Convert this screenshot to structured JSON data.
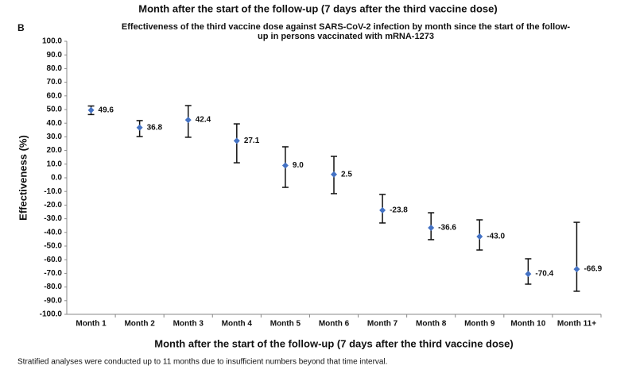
{
  "chart_data": {
    "type": "errorbar",
    "header": "Month after the start of the follow-up (7 days after the third vaccine dose)",
    "panel_label": "B",
    "title": "Effectiveness of the third vaccine dose against SARS-CoV-2 infection by month since the start of the follow-",
    "title_line2": "up in persons vaccinated with mRNA-1273",
    "y_label": "Effectiveness (%)",
    "x_label": "Month after the start of the follow-up (7 days after the third vaccine dose)",
    "footnote": "Stratified analyses were conducted up to 11 months due to insufficient numbers beyond that time interval.",
    "categories": [
      "Month 1",
      "Month 2",
      "Month 3",
      "Month 4",
      "Month 5",
      "Month 6",
      "Month 7",
      "Month 8",
      "Month 9",
      "Month 10",
      "Month 11+"
    ],
    "series": [
      {
        "color": "#4472c4",
        "values": [
          49.6,
          36.8,
          42.4,
          27.1,
          9.0,
          2.5,
          -23.8,
          -36.6,
          -43.0,
          -70.4,
          -66.9
        ],
        "value_labels": [
          "49.6",
          "36.8",
          "42.4",
          "27.1",
          "9.0",
          "2.5",
          "-23.8",
          "-36.6",
          "-43.0",
          "-70.4",
          "-66.9"
        ],
        "lower": [
          46.3,
          30.2,
          29.7,
          11.0,
          -7.0,
          -11.6,
          -33.1,
          -45.3,
          -52.9,
          -77.9,
          -83.1
        ],
        "upper": [
          52.6,
          41.9,
          52.9,
          39.5,
          22.7,
          15.7,
          -12.2,
          -25.6,
          -30.8,
          -59.3,
          -32.6
        ]
      }
    ],
    "ylim": [
      -100,
      100
    ],
    "yticks": [
      {
        "value": -100,
        "label": "-100.0"
      },
      {
        "value": -90,
        "label": "-90.0"
      },
      {
        "value": -80,
        "label": "-80.0"
      },
      {
        "value": -70,
        "label": "-70.0"
      },
      {
        "value": -60,
        "label": "-60.0"
      },
      {
        "value": -50,
        "label": "-50.0"
      },
      {
        "value": -40,
        "label": "-40.0"
      },
      {
        "value": -30,
        "label": "-30.0"
      },
      {
        "value": -20,
        "label": "-20.0"
      },
      {
        "value": -10,
        "label": "-10.0"
      },
      {
        "value": 0,
        "label": "0.0"
      },
      {
        "value": 10,
        "label": "10.0"
      },
      {
        "value": 20,
        "label": "20.0"
      },
      {
        "value": 30,
        "label": "30.0"
      },
      {
        "value": 40,
        "label": "40.0"
      },
      {
        "value": 50,
        "label": "50.0"
      },
      {
        "value": 60,
        "label": "60.0"
      },
      {
        "value": 70,
        "label": "70.0"
      },
      {
        "value": 80,
        "label": "80.0"
      },
      {
        "value": 90,
        "label": "90.0"
      },
      {
        "value": 100,
        "label": "100.0"
      }
    ],
    "grid": false
  }
}
